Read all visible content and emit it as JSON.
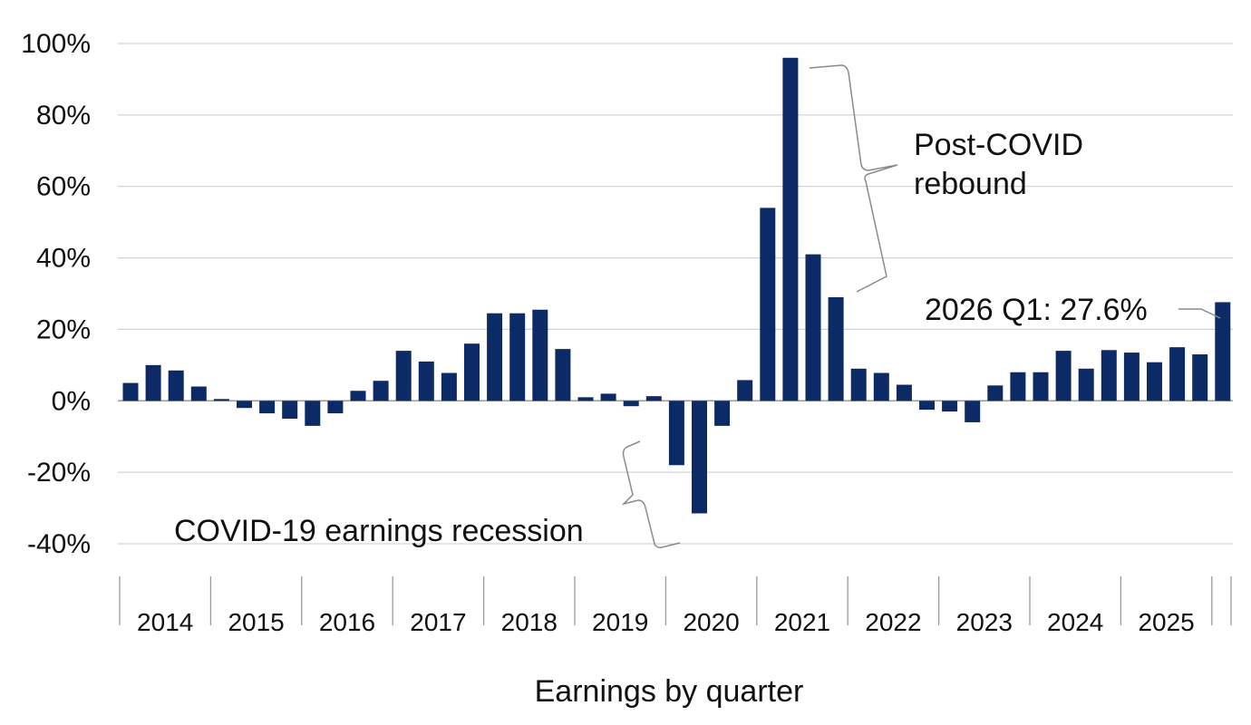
{
  "chart_data": {
    "type": "bar",
    "xlabel": "Earnings by quarter",
    "ylabel": "",
    "ylim": [
      -40,
      100
    ],
    "yticks": [
      100,
      80,
      60,
      40,
      20,
      0,
      -20,
      -40
    ],
    "ytick_labels": [
      "100%",
      "80%",
      "60%",
      "40%",
      "20%",
      "0%",
      "-20%",
      "-40%"
    ],
    "grid": true,
    "bar_color": "#0c2a66",
    "grid_color": "#c8c8c8",
    "years": [
      "2014",
      "2015",
      "2016",
      "2017",
      "2018",
      "2019",
      "2020",
      "2021",
      "2022",
      "2023",
      "2024",
      "2025"
    ],
    "categories": [
      "2014 Q1",
      "2014 Q2",
      "2014 Q3",
      "2014 Q4",
      "2015 Q1",
      "2015 Q2",
      "2015 Q3",
      "2015 Q4",
      "2016 Q1",
      "2016 Q2",
      "2016 Q3",
      "2016 Q4",
      "2017 Q1",
      "2017 Q2",
      "2017 Q3",
      "2017 Q4",
      "2018 Q1",
      "2018 Q2",
      "2018 Q3",
      "2018 Q4",
      "2019 Q1",
      "2019 Q2",
      "2019 Q3",
      "2019 Q4",
      "2020 Q1",
      "2020 Q2",
      "2020 Q3",
      "2020 Q4",
      "2021 Q1",
      "2021 Q2",
      "2021 Q3",
      "2021 Q4",
      "2022 Q1",
      "2022 Q2",
      "2022 Q3",
      "2022 Q4",
      "2023 Q1",
      "2023 Q2",
      "2023 Q3",
      "2023 Q4",
      "2024 Q1",
      "2024 Q2",
      "2024 Q3",
      "2024 Q4",
      "2025 Q1",
      "2025 Q2",
      "2025 Q3",
      "2025 Q4",
      "2026 Q1"
    ],
    "values": [
      5.0,
      10.0,
      8.5,
      4.0,
      0.5,
      -2.0,
      -3.5,
      -5.0,
      -7.0,
      -3.5,
      2.8,
      5.6,
      14.0,
      11.0,
      7.8,
      16.0,
      24.5,
      24.5,
      25.5,
      14.5,
      1.0,
      2.0,
      -1.5,
      1.3,
      -18.0,
      -31.5,
      -7.0,
      5.8,
      54.0,
      96.0,
      41.0,
      29.0,
      9.0,
      7.8,
      4.5,
      -2.5,
      -3.0,
      -6.0,
      4.3,
      8.0,
      8.0,
      14.0,
      9.0,
      14.2,
      13.5,
      10.8,
      15.0,
      13.0,
      27.6
    ],
    "annotations": [
      {
        "text_lines": [
          "Post-COVID",
          "rebound"
        ]
      },
      {
        "text_lines": [
          "COVID-19 earnings recession"
        ]
      },
      {
        "text_lines": [
          "2026 Q1: 27.6%"
        ]
      }
    ]
  }
}
